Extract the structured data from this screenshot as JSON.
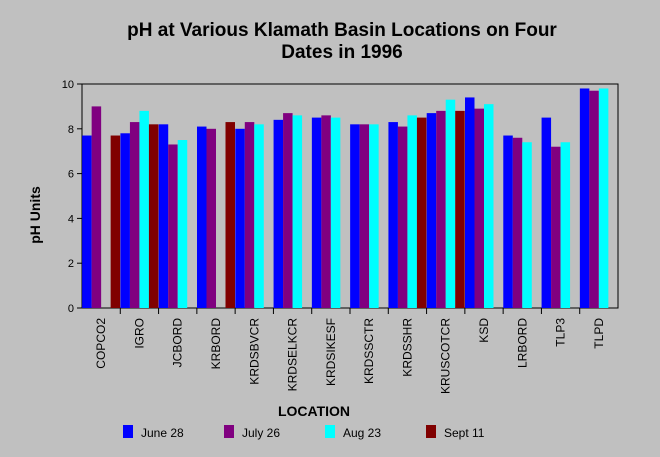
{
  "chart_data": {
    "type": "bar",
    "title_lines": [
      "pH at Various Klamath Basin Locations on Four",
      "Dates in 1996"
    ],
    "xlabel": "LOCATION",
    "ylabel": "pH Units",
    "ylim": [
      0,
      10
    ],
    "yticks": [
      "0",
      "2",
      "4",
      "6",
      "8",
      "10"
    ],
    "grid": false,
    "legend_position": "bottom",
    "categories": [
      "COPCO2",
      "IGRO",
      "JCBORD",
      "KRBORD",
      "KRDSBVCR",
      "KRDSELKCR",
      "KRDSIKESF",
      "KRDSSCTR",
      "KRDSSHR",
      "KRUSCOTCR",
      "KSD",
      "LRBORD",
      "TLP3",
      "TLPD"
    ],
    "series": [
      {
        "name": "June 28",
        "color": "#0000ff",
        "values": [
          7.7,
          7.8,
          8.2,
          8.1,
          8.0,
          8.4,
          8.5,
          8.2,
          8.3,
          8.7,
          9.4,
          7.7,
          8.5,
          9.8
        ]
      },
      {
        "name": "July 26",
        "color": "#800080",
        "values": [
          9.0,
          8.3,
          7.3,
          8.0,
          8.3,
          8.7,
          8.6,
          8.2,
          8.1,
          8.8,
          8.9,
          7.6,
          7.2,
          9.7
        ]
      },
      {
        "name": "Aug 23",
        "color": "#00ffff",
        "values": [
          null,
          8.8,
          7.5,
          null,
          8.2,
          8.6,
          8.5,
          8.2,
          8.6,
          9.3,
          9.1,
          7.4,
          7.4,
          9.8
        ]
      },
      {
        "name": "Sept 11",
        "color": "#800000",
        "values": [
          7.7,
          8.2,
          null,
          8.3,
          null,
          null,
          null,
          null,
          8.5,
          8.8,
          null,
          null,
          null,
          null
        ]
      }
    ]
  }
}
